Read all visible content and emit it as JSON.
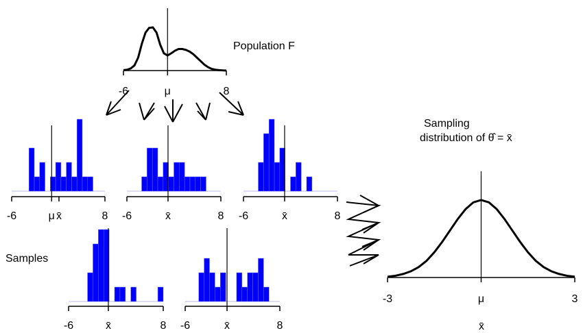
{
  "chart_data": [
    {
      "type": "line",
      "title": "Population F",
      "x": [
        -6,
        -5.5,
        -5,
        -4.5,
        -4,
        -3.5,
        -3,
        -2.5,
        -2,
        -1.5,
        -1,
        -0.5,
        0,
        0.5,
        1,
        1.5,
        2,
        2.5,
        3,
        3.5,
        4,
        4.5,
        5,
        5.5,
        6,
        6.5,
        7,
        7.5,
        8
      ],
      "values": [
        0.01,
        0.02,
        0.05,
        0.12,
        0.3,
        0.62,
        0.88,
        0.99,
        1.0,
        0.88,
        0.6,
        0.4,
        0.35,
        0.4,
        0.46,
        0.5,
        0.5,
        0.48,
        0.44,
        0.38,
        0.3,
        0.22,
        0.14,
        0.08,
        0.04,
        0.02,
        0.01,
        0.005,
        0
      ],
      "color": "#000000",
      "xlim": [
        -6,
        8
      ],
      "ylim": [
        0,
        1
      ],
      "xticks": [
        -6,
        {
          "value": 0,
          "label": "μ"
        },
        8
      ],
      "vline": 0
    },
    {
      "type": "histogram",
      "bins": [
        -3.4,
        -2.6,
        -1.8,
        -1.0,
        -0.2,
        0.6,
        1.4,
        2.2,
        3.0,
        3.8,
        4.6,
        5.4,
        6.2
      ],
      "counts": [
        3,
        1,
        2,
        0,
        1,
        2,
        1,
        2,
        1,
        5,
        1,
        1
      ],
      "color": "#0000ff",
      "xlim": [
        -6,
        8
      ],
      "ylim": [
        0,
        5
      ],
      "xticks": [
        -6,
        {
          "value": 0,
          "label": "μ"
        },
        {
          "value": 1.1,
          "label": "x̄"
        },
        8
      ],
      "vline": 0
    },
    {
      "type": "histogram",
      "bins": [
        -3.8,
        -3.0,
        -2.2,
        -1.4,
        -0.6,
        0.2,
        1.0,
        1.8,
        2.6,
        3.4,
        4.2,
        5.0,
        5.8
      ],
      "counts": [
        1,
        3,
        3,
        1,
        2,
        1,
        2,
        2,
        1,
        1,
        1,
        1
      ],
      "color": "#0000ff",
      "xlim": [
        -6,
        8
      ],
      "ylim": [
        0,
        5
      ],
      "xticks": [
        -6,
        {
          "value": 0.13,
          "label": "x̄"
        },
        8
      ],
      "vline": 0.13
    },
    {
      "type": "histogram",
      "bins": [
        -3.8,
        -3.0,
        -2.2,
        -1.4,
        -0.6,
        0.2,
        1.0,
        1.8,
        2.6,
        3.4,
        4.2
      ],
      "counts": [
        2,
        4,
        5,
        2,
        3,
        0,
        1,
        2,
        0,
        1
      ],
      "color": "#0000ff",
      "xlim": [
        -6,
        8
      ],
      "ylim": [
        0,
        5
      ],
      "xticks": [
        -6,
        {
          "value": 0.13,
          "label": "x̄"
        },
        8
      ],
      "vline": 0.13
    },
    {
      "type": "histogram",
      "bins": [
        -3.2,
        -2.4,
        -1.6,
        -0.8,
        0,
        0.8,
        1.6,
        2.4,
        3.2,
        4.0,
        4.8,
        5.6,
        6.4,
        7.2,
        8.0
      ],
      "counts": [
        2,
        4,
        5,
        5,
        0,
        1,
        1,
        0,
        1,
        0,
        0,
        0,
        0,
        1
      ],
      "color": "#0000ff",
      "xlim": [
        -6,
        8
      ],
      "ylim": [
        0,
        5
      ],
      "xticks": [
        -6,
        {
          "value": -0.12,
          "label": "x̄"
        },
        8
      ],
      "vline": -0.12
    },
    {
      "type": "histogram",
      "bins": [
        -4.0,
        -3.2,
        -2.4,
        -1.6,
        -0.8,
        0,
        0.8,
        1.6,
        2.4,
        3.2,
        4.0,
        4.8,
        5.6,
        6.4
      ],
      "counts": [
        2,
        3,
        2,
        1,
        2,
        0,
        0,
        2,
        1,
        2,
        2,
        3,
        1
      ],
      "color": "#0000ff",
      "xlim": [
        -6,
        8
      ],
      "ylim": [
        0,
        5
      ],
      "xticks": [
        -6,
        {
          "value": 0.19,
          "label": "x̄"
        },
        8
      ],
      "vline": 0.19
    },
    {
      "type": "line",
      "title": "Sampling",
      "subtitle": "distribution of θ̂ = x̄",
      "xlabel": "x̄",
      "x": [
        -3,
        -2.75,
        -2.5,
        -2.25,
        -2,
        -1.75,
        -1.5,
        -1.25,
        -1,
        -0.75,
        -0.5,
        -0.25,
        0,
        0.25,
        0.5,
        0.75,
        1,
        1.25,
        1.5,
        1.75,
        2,
        2.25,
        2.5,
        2.75,
        3
      ],
      "values": [
        0.004,
        0.009,
        0.018,
        0.032,
        0.054,
        0.086,
        0.13,
        0.183,
        0.242,
        0.301,
        0.352,
        0.387,
        0.399,
        0.387,
        0.352,
        0.301,
        0.242,
        0.183,
        0.13,
        0.086,
        0.054,
        0.032,
        0.018,
        0.009,
        0.004
      ],
      "color": "#000000",
      "xlim": [
        -3,
        3
      ],
      "ylim": [
        0,
        0.42
      ],
      "xticks": [
        -3,
        {
          "value": 0,
          "label": "μ"
        },
        3
      ],
      "vline": 0
    }
  ],
  "annotation": "Samples"
}
